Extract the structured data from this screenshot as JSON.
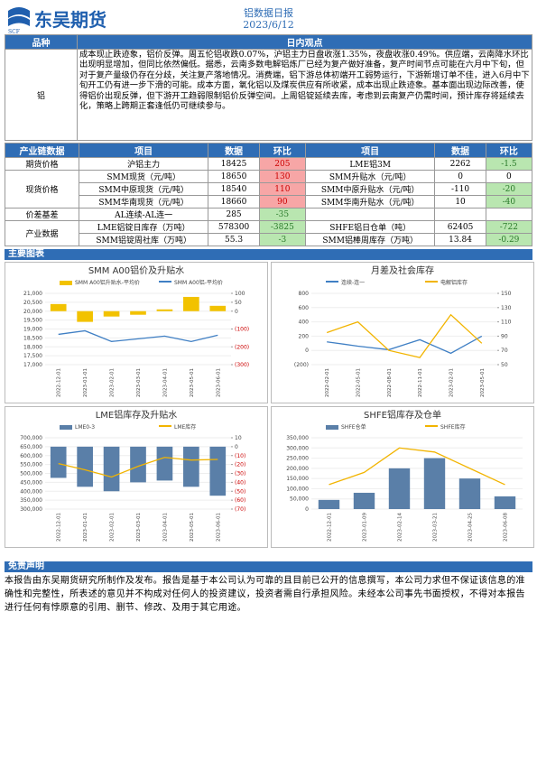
{
  "header": {
    "logo": "东吴期货",
    "logo_sub": "SCF",
    "title": "铝数据日报",
    "date": "2023/6/12"
  },
  "view": {
    "label": "品种",
    "heading": "日内观点",
    "item": "铝",
    "text": "成本现止跌迹象，铝价反弹。周五伦铝收跌0.07%，沪铝主力日盘收涨1.35%，夜盘收涨0.49%。供应端，云南降水环比出现明显增加，但同比依然偏低。据悉，云南多数电解铝炼厂已经为复产做好准备，复产时间节点可能在六月中下旬，但对于复产量级仍存在分歧，关注复产落地情况。消费端，铝下游总体初端开工弱势运行，下游新增订单不佳，进入6月中下旬开工仍有进一步下滑的可能。成本方面，氧化铝以及煤炭供应有所收紧，成本出现止跌迹象。基本面出现边际改善，使得铝价出现反弹，但下游开工趋弱限制铝价反弹空间。上周铝锭延续去库，考虑到云南复产仍需时间，预计库存将延续去化，策略上跨期正套逢低仍可继续参与。"
  },
  "table": {
    "headers": [
      "产业链数据",
      "项目",
      "数据",
      "环比",
      "项目",
      "数据",
      "环比"
    ],
    "groups": [
      {
        "name": "期货价格",
        "rows": [
          [
            "沪铝主力",
            18425,
            205,
            "LME铝3M",
            2262,
            -1.5
          ]
        ]
      },
      {
        "name": "现货价格",
        "rows": [
          [
            "SMM现货（元/吨）",
            18650,
            130,
            "SMM升贴水（元/吨）",
            0,
            0
          ],
          [
            "SMM中原现货（元/吨）",
            18540,
            110,
            "SMM中原升贴水（元/吨）",
            -110,
            -20
          ],
          [
            "SMM华南现货（元/吨）",
            18660,
            90,
            "SMM华南升贴水（元/吨）",
            10,
            -40
          ]
        ]
      },
      {
        "name": "价差基差",
        "rows": [
          [
            "AL连续-AL连一",
            285,
            -35,
            null,
            null,
            null
          ]
        ]
      },
      {
        "name": "产业数据",
        "rows": [
          [
            "LME铝锭日库存（万吨）",
            578300,
            -3825,
            "SHFE铝日仓单（吨）",
            62405,
            -722
          ],
          [
            "SMM铝锭周社库（万吨）",
            55.3,
            -3,
            "SMM铝棒周库存（万吨）",
            13.84,
            -0.29
          ]
        ]
      }
    ]
  },
  "charts_heading": "主要图表",
  "chart_data": [
    {
      "type": "combo",
      "title": "SMM A00铝价及升贴水",
      "categories": [
        "2022-12-01",
        "2023-01-01",
        "2023-02-01",
        "2023-03-01",
        "2023-04-01",
        "2023-05-01",
        "2023-06-01"
      ],
      "ylim": [
        17000,
        21000
      ],
      "yticks": [
        {
          "value": 17000,
          "label": "17,000"
        },
        {
          "value": 17500,
          "label": "17,500"
        },
        {
          "value": 18000,
          "label": "18,000"
        },
        {
          "value": 18500,
          "label": "18,500"
        },
        {
          "value": 19000,
          "label": "19,000"
        },
        {
          "value": 19500,
          "label": "19,500"
        },
        {
          "value": 20000,
          "label": "20,000"
        },
        {
          "value": 20500,
          "label": "20,500"
        },
        {
          "value": 21000,
          "label": "21,000"
        }
      ],
      "y2lim": [
        -300,
        100
      ],
      "y2ticks": [
        100,
        50,
        0,
        {
          "value": -100,
          "label": "(100)"
        },
        {
          "value": -200,
          "label": "(200)"
        },
        {
          "value": -300,
          "label": "(300)"
        }
      ],
      "series": [
        {
          "name": "SMM A00铝升贴水-平均价",
          "type": "bar",
          "axis": "y2",
          "color": "#f2c200",
          "values": [
            40,
            -60,
            -30,
            -20,
            10,
            80,
            30
          ]
        },
        {
          "name": "SMM A00铝-平均价",
          "type": "line",
          "color": "#3f7fc4",
          "values": [
            18700,
            18900,
            18300,
            18450,
            18600,
            18300,
            18650
          ]
        }
      ]
    },
    {
      "type": "combo",
      "title": "月差及社会库存",
      "categories": [
        "2022-02-01",
        "2022-05-01",
        "2022-08-01",
        "2022-11-01",
        "2023-02-01",
        "2023-05-01"
      ],
      "ylim": [
        -200,
        800
      ],
      "yticks": [
        800,
        600,
        400,
        200,
        0,
        {
          "value": -200,
          "label": "(200)"
        }
      ],
      "y2lim": [
        50,
        150
      ],
      "y2ticks": [
        150,
        130,
        110,
        90,
        70,
        50
      ],
      "series": [
        {
          "name": "连续-连一",
          "type": "line",
          "color": "#3f7fc4",
          "values": [
            120,
            60,
            10,
            150,
            -40,
            200
          ]
        },
        {
          "name": "电解铝库存",
          "type": "line",
          "axis": "y2",
          "color": "#f2b400",
          "values": [
            95,
            110,
            70,
            60,
            120,
            80
          ]
        }
      ]
    },
    {
      "type": "combo",
      "title": "LME铝库存及升贴水",
      "categories": [
        "2022-12-01",
        "2023-01-01",
        "2023-02-01",
        "2023-03-01",
        "2023-04-01",
        "2023-05-01",
        "2023-06-01"
      ],
      "ylim": [
        300000,
        700000
      ],
      "yticks": [
        {
          "value": 300000,
          "label": "300,000"
        },
        {
          "value": 350000,
          "label": "350,000"
        },
        {
          "value": 400000,
          "label": "400,000"
        },
        {
          "value": 450000,
          "label": "450,000"
        },
        {
          "value": 500000,
          "label": "500,000"
        },
        {
          "value": 550000,
          "label": "550,000"
        },
        {
          "value": 600000,
          "label": "600,000"
        },
        {
          "value": 650000,
          "label": "650,000"
        },
        {
          "value": 700000,
          "label": "700,000"
        }
      ],
      "y2lim": [
        -70,
        10
      ],
      "y2ticks": [
        10,
        0,
        {
          "value": -10,
          "label": "(10)"
        },
        {
          "value": -20,
          "label": "(20)"
        },
        {
          "value": -30,
          "label": "(30)"
        },
        {
          "value": -40,
          "label": "(40)"
        },
        {
          "value": -50,
          "label": "(50)"
        },
        {
          "value": -60,
          "label": "(60)"
        },
        {
          "value": -70,
          "label": "(70)"
        }
      ],
      "series": [
        {
          "name": "LME0-3",
          "type": "bar",
          "axis": "y2",
          "color": "#5a7fa8",
          "values": [
            -35,
            -45,
            -50,
            -40,
            -38,
            -45,
            -55
          ]
        },
        {
          "name": "LME库存",
          "type": "line",
          "color": "#f2b400",
          "values": [
            555000,
            520000,
            480000,
            540000,
            590000,
            575000,
            578300
          ]
        }
      ]
    },
    {
      "type": "combo",
      "title": "SHFE铝库存及仓单",
      "categories": [
        "2022-12-01",
        "2023-01-09",
        "2023-02-14",
        "2023-03-21",
        "2023-04-25",
        "2023-06-08"
      ],
      "ylim": [
        0,
        350000
      ],
      "yticks": [
        0,
        {
          "value": 50000,
          "label": "50,000"
        },
        {
          "value": 100000,
          "label": "100,000"
        },
        {
          "value": 150000,
          "label": "150,000"
        },
        {
          "value": 200000,
          "label": "200,000"
        },
        {
          "value": 250000,
          "label": "250,000"
        },
        {
          "value": 300000,
          "label": "300,000"
        },
        {
          "value": 350000,
          "label": "350,000"
        }
      ],
      "series": [
        {
          "name": "SHFE仓单",
          "type": "bar",
          "color": "#5a7fa8",
          "values": [
            45000,
            80000,
            200000,
            250000,
            150000,
            62405
          ]
        },
        {
          "name": "SHFE库存",
          "type": "line",
          "color": "#f2b400",
          "values": [
            120000,
            180000,
            300000,
            280000,
            200000,
            120000
          ]
        }
      ]
    }
  ],
  "disclaimer": {
    "heading": "免责声明",
    "text": "本报告由东吴期货研究所制作及发布。报告是基于本公司认为可靠的且目前已公开的信息撰写，本公司力求但不保证该信息的准确性和完整性，所表述的意见并不构成对任何人的投资建议，投资者需自行承担风险。未经本公司事先书面授权，不得对本报告进行任何有悖原意的引用、删节、修改、及用于其它用途。"
  }
}
